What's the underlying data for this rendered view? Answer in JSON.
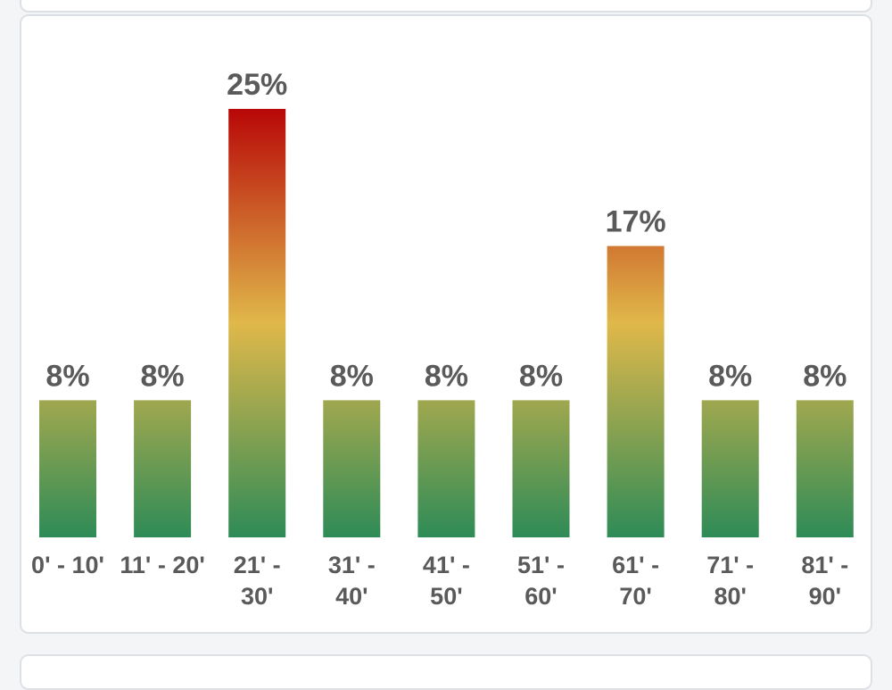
{
  "chart_data": {
    "type": "bar",
    "categories": [
      [
        "0' - 10'"
      ],
      [
        "11' - 20'"
      ],
      [
        "21' -",
        "30'"
      ],
      [
        "31' -",
        "40'"
      ],
      [
        "41' -",
        "50'"
      ],
      [
        "51' -",
        "60'"
      ],
      [
        "61' -",
        "70'"
      ],
      [
        "71' -",
        "80'"
      ],
      [
        "81' -",
        "90'"
      ]
    ],
    "values": [
      8,
      8,
      25,
      8,
      8,
      8,
      17,
      8,
      8
    ],
    "value_labels": [
      "8%",
      "8%",
      "25%",
      "8%",
      "8%",
      "8%",
      "17%",
      "8%",
      "8%"
    ],
    "ylim": [
      0,
      25
    ],
    "grid": false,
    "legend": "none",
    "gradient_colors": {
      "low": "#2e8b57",
      "mid": "#e0b84a",
      "high": "#b80707"
    }
  },
  "colors": {
    "label_text": "#5a5a5a",
    "card_border": "#dde1e6",
    "background": "#f4f5f7"
  }
}
